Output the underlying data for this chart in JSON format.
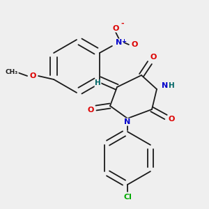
{
  "background_color": "#efefef",
  "bond_color": "#1a1a1a",
  "atom_colors": {
    "O": "#dd0000",
    "N": "#0000cc",
    "Cl": "#00aa00",
    "H": "#006666",
    "C": "#1a1a1a"
  },
  "figsize": [
    3.0,
    3.0
  ],
  "dpi": 100
}
